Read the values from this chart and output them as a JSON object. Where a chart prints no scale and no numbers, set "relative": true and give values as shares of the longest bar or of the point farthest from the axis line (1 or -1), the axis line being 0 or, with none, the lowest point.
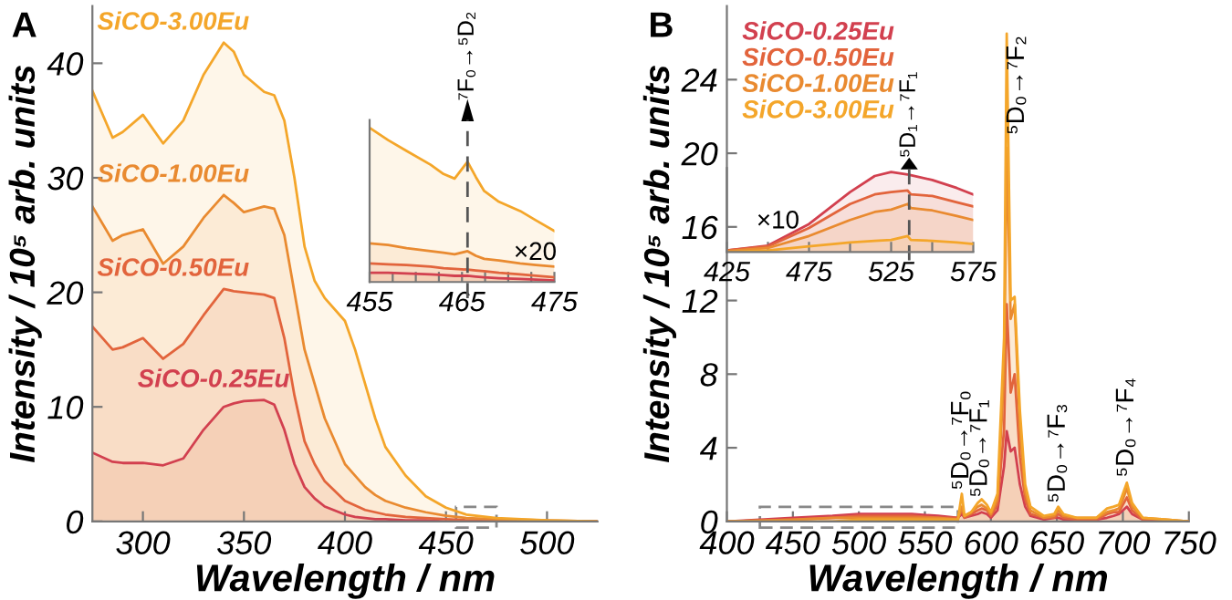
{
  "chart_data": [
    {
      "type": "area",
      "xlabel": "Wavelength / nm",
      "ylabel": "Intensity / 10⁵ arb. units",
      "legend": false,
      "x": [
        275,
        285,
        290,
        300,
        310,
        320,
        330,
        340,
        345,
        350,
        360,
        365,
        370,
        375,
        380,
        385,
        390,
        400,
        405,
        410,
        415,
        420,
        430,
        440,
        450,
        460,
        475,
        500,
        525
      ],
      "series": [
        {
          "name": "SiCO-0.25Eu",
          "color": "#d2404f",
          "values": [
            6,
            5.2,
            5.1,
            5.1,
            4.9,
            5.5,
            8,
            10,
            10.3,
            10.5,
            10.6,
            10.2,
            8,
            5,
            3,
            2,
            1.3,
            0.6,
            0.4,
            0.3,
            0.2,
            0.2,
            0.1,
            0.1,
            0,
            0,
            0,
            0,
            0
          ]
        },
        {
          "name": "SiCO-0.50Eu",
          "color": "#e2643c",
          "values": [
            17,
            15,
            15.2,
            16,
            14.2,
            15.5,
            18,
            20.3,
            20.1,
            20,
            19.8,
            19.5,
            16,
            11,
            7,
            5,
            3.5,
            1.8,
            1.4,
            1.0,
            0.8,
            0.6,
            0.4,
            0.3,
            0.2,
            0.1,
            0.1,
            0,
            0
          ]
        },
        {
          "name": "SiCO-1.00Eu",
          "color": "#e98a30",
          "values": [
            27.5,
            24.5,
            25,
            25.5,
            22.5,
            24,
            26.5,
            28.5,
            27.8,
            27,
            27.5,
            27.3,
            25,
            20,
            15,
            12,
            9,
            5,
            4,
            3,
            2.3,
            1.8,
            1.2,
            0.8,
            0.5,
            0.3,
            0.2,
            0.1,
            0
          ]
        },
        {
          "name": "SiCO-3.00Eu",
          "color": "#f4a62a",
          "values": [
            37.6,
            33.5,
            34,
            35.5,
            33,
            35,
            39,
            41.8,
            41,
            39,
            37.5,
            37.2,
            35,
            30,
            24,
            21,
            19.5,
            17.5,
            15,
            12,
            9,
            6.5,
            4,
            2.2,
            1.2,
            0.6,
            0.3,
            0.1,
            0
          ]
        }
      ],
      "xlim": [
        275,
        525
      ],
      "ylim": [
        0,
        45
      ],
      "xticks": [
        300,
        350,
        400,
        450,
        500
      ],
      "yticks": [
        0,
        10,
        20,
        30,
        40
      ],
      "annotations": [
        "A"
      ]
    },
    {
      "type": "area",
      "relative": true,
      "legend": false,
      "x": [
        455,
        457,
        459,
        461.6,
        463,
        464.2,
        465.6,
        466.5,
        467.4,
        469,
        471.3,
        473,
        475
      ],
      "series": [
        {
          "color": "#d2404f",
          "values": [
            0.06,
            0.06,
            0.055,
            0.05,
            0.045,
            0.04,
            0.04,
            0.035,
            0.03,
            0.025,
            0.02,
            0.015,
            0.01
          ]
        },
        {
          "color": "#e2643c",
          "values": [
            0.12,
            0.115,
            0.11,
            0.1,
            0.09,
            0.085,
            0.08,
            0.075,
            0.07,
            0.06,
            0.05,
            0.04,
            0.03
          ]
        },
        {
          "color": "#e98a30",
          "values": [
            0.25,
            0.24,
            0.22,
            0.2,
            0.19,
            0.18,
            0.2,
            0.17,
            0.15,
            0.14,
            0.12,
            0.11,
            0.1
          ]
        },
        {
          "color": "#f4a62a",
          "values": [
            1.0,
            0.92,
            0.85,
            0.76,
            0.7,
            0.67,
            0.78,
            0.68,
            0.59,
            0.52,
            0.46,
            0.4,
            0.33
          ]
        }
      ],
      "xlim": [
        455,
        475
      ],
      "xticks": [
        455,
        {
          "value": 457.5,
          "label": null
        },
        {
          "value": 460,
          "label": null
        },
        {
          "value": 462.5,
          "label": null
        },
        465,
        {
          "value": 467.5,
          "label": null
        },
        {
          "value": 470,
          "label": null
        },
        {
          "value": 472.5,
          "label": null
        },
        475
      ],
      "ref_lines": [
        {
          "axis": "x",
          "value": 465.6,
          "label": "⁷F₀→⁵D₂",
          "line_style": "dashed",
          "color": "#555555"
        }
      ],
      "annotations": [
        "×20"
      ]
    },
    {
      "type": "area",
      "xlabel": "Wavelength / nm",
      "ylabel": "Intensity / 10⁵ arb. units",
      "legend": "top left",
      "x": [
        400,
        450,
        480,
        500,
        520,
        540,
        560,
        575,
        578,
        580,
        585,
        590,
        593,
        597,
        600,
        605,
        610,
        612,
        615,
        618,
        622,
        626,
        630,
        640,
        648,
        651,
        655,
        665,
        680,
        688,
        693,
        697,
        700,
        703,
        707,
        715,
        750
      ],
      "series": [
        {
          "name": "SiCO-0.25Eu",
          "color": "#d2404f",
          "values": [
            0,
            0.2,
            0.3,
            0.4,
            0.4,
            0.4,
            0.3,
            0.2,
            0.4,
            0.2,
            0.3,
            0.4,
            0.5,
            0.4,
            0.2,
            0.6,
            3,
            4.9,
            3.8,
            4,
            2,
            0.8,
            0.3,
            0.1,
            0.2,
            0.2,
            0.1,
            0.1,
            0.1,
            0.2,
            0.3,
            0.4,
            0.6,
            0.8,
            0.4,
            0.1,
            0
          ]
        },
        {
          "name": "SiCO-0.50Eu",
          "color": "#e2643c",
          "values": [
            0,
            0.1,
            0.2,
            0.3,
            0.3,
            0.3,
            0.2,
            0.2,
            0.6,
            0.2,
            0.4,
            0.6,
            0.7,
            0.6,
            0.3,
            0.9,
            5,
            11.8,
            7,
            8,
            3.5,
            1.2,
            0.4,
            0.2,
            0.2,
            0.4,
            0.2,
            0.1,
            0.1,
            0.4,
            0.5,
            0.5,
            0.9,
            1.3,
            0.6,
            0.1,
            0
          ]
        },
        {
          "name": "SiCO-1.00Eu",
          "color": "#e98a30",
          "values": [
            0,
            0.1,
            0.2,
            0.2,
            0.2,
            0.2,
            0.2,
            0.1,
            0.8,
            0.3,
            0.5,
            0.8,
            0.9,
            0.7,
            0.4,
            1.2,
            8,
            20.3,
            11,
            11.8,
            5,
            1.6,
            0.6,
            0.2,
            0.3,
            0.6,
            0.3,
            0.2,
            0.2,
            0.5,
            0.6,
            0.7,
            1.2,
            1.8,
            0.8,
            0.2,
            0
          ]
        },
        {
          "name": "SiCO-3.00Eu",
          "color": "#f4a62a",
          "values": [
            0,
            0,
            0,
            0.1,
            0.1,
            0.1,
            0.1,
            0.1,
            1.5,
            0.3,
            0.5,
            1.0,
            1.2,
            0.9,
            0.5,
            1.5,
            10,
            26.5,
            12,
            12.2,
            6,
            2,
            0.8,
            0.3,
            0.4,
            0.8,
            0.4,
            0.2,
            0.2,
            0.7,
            0.8,
            0.9,
            1.5,
            2.1,
            1.0,
            0.2,
            0
          ]
        }
      ],
      "xlim": [
        400,
        750
      ],
      "ylim": [
        0,
        28
      ],
      "xticks": [
        400,
        450,
        500,
        550,
        600,
        650,
        700,
        750
      ],
      "yticks": [
        0,
        4,
        8,
        12,
        16,
        20,
        24
      ],
      "annotations": [
        "B",
        {
          "text": "⁵D₀→⁷F₀",
          "x": 578,
          "y": 1.7
        },
        {
          "text": "⁵D₀→⁷F₁",
          "x": 592,
          "y": 1.3
        },
        {
          "text": "⁵D₀→⁷F₂",
          "x": 620,
          "y": 21
        },
        {
          "text": "⁵D₀→⁷F₃",
          "x": 651,
          "y": 1.0
        },
        {
          "text": "⁵D₀→⁷F₄",
          "x": 703,
          "y": 2.4
        }
      ]
    },
    {
      "type": "area",
      "relative": true,
      "legend": false,
      "x": [
        425,
        450,
        475,
        500,
        515,
        525,
        535,
        537,
        550,
        565,
        575
      ],
      "series": [
        {
          "color": "#d2404f",
          "values": [
            0.02,
            0.08,
            0.35,
            0.75,
            0.95,
            1.0,
            0.97,
            0.96,
            0.9,
            0.8,
            0.72
          ]
        },
        {
          "color": "#e2643c",
          "values": [
            0.02,
            0.07,
            0.3,
            0.6,
            0.72,
            0.75,
            0.77,
            0.72,
            0.7,
            0.62,
            0.57
          ]
        },
        {
          "color": "#e98a30",
          "values": [
            0.01,
            0.05,
            0.2,
            0.4,
            0.5,
            0.53,
            0.6,
            0.55,
            0.52,
            0.45,
            0.4
          ]
        },
        {
          "color": "#f4a62a",
          "values": [
            0,
            0.02,
            0.07,
            0.12,
            0.14,
            0.15,
            0.2,
            0.15,
            0.14,
            0.12,
            0.1
          ]
        }
      ],
      "xlim": [
        425,
        575
      ],
      "xticks": [
        425,
        {
          "value": 450,
          "label": null
        },
        475,
        {
          "value": 500,
          "label": null
        },
        525,
        {
          "value": 550,
          "label": null
        },
        575
      ],
      "ref_lines": [
        {
          "axis": "x",
          "value": 536,
          "label": "⁵D₁→⁷F₁",
          "line_style": "dashed",
          "color": "#555555"
        }
      ],
      "annotations": [
        "×10"
      ]
    }
  ]
}
